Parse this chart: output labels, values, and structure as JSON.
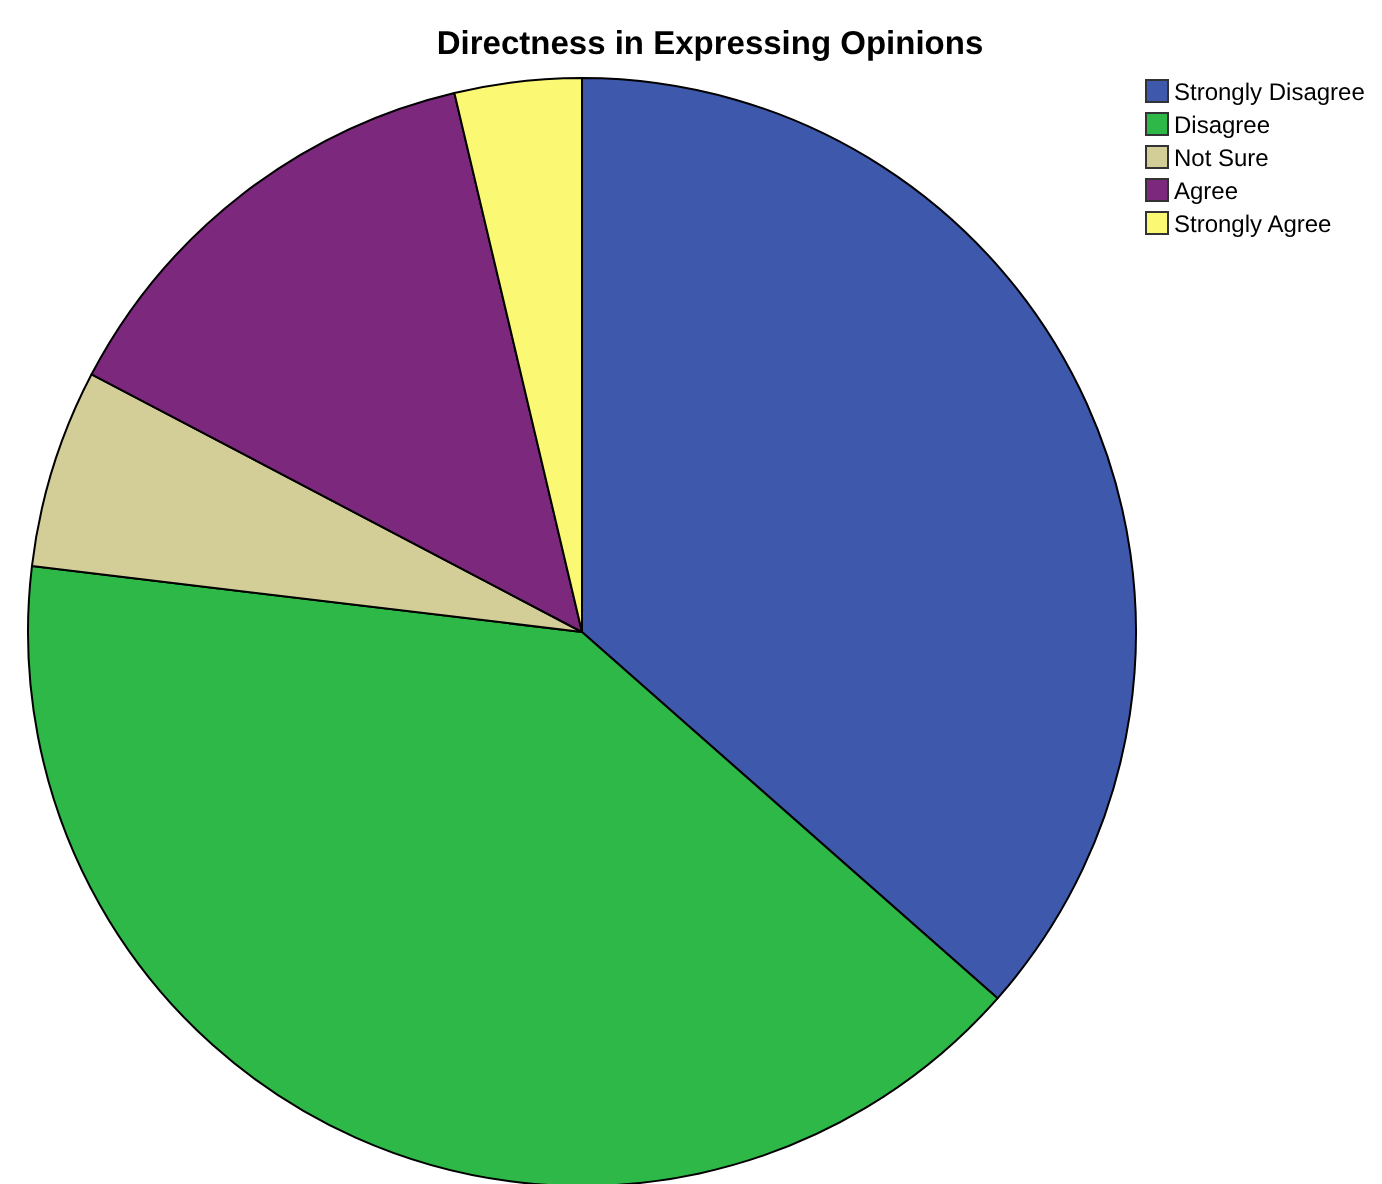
{
  "chart_data": {
    "type": "pie",
    "title": "Directness in Expressing Opinions",
    "categories": [
      "Strongly Disagree",
      "Disagree",
      "Not Sure",
      "Agree",
      "Strongly Agree"
    ],
    "values": [
      36.5,
      40.4,
      5.8,
      13.6,
      3.7
    ],
    "colors": [
      "#3e58ac",
      "#2eb848",
      "#d3ce97",
      "#7c287d",
      "#fbf873"
    ],
    "legend": "top right"
  }
}
